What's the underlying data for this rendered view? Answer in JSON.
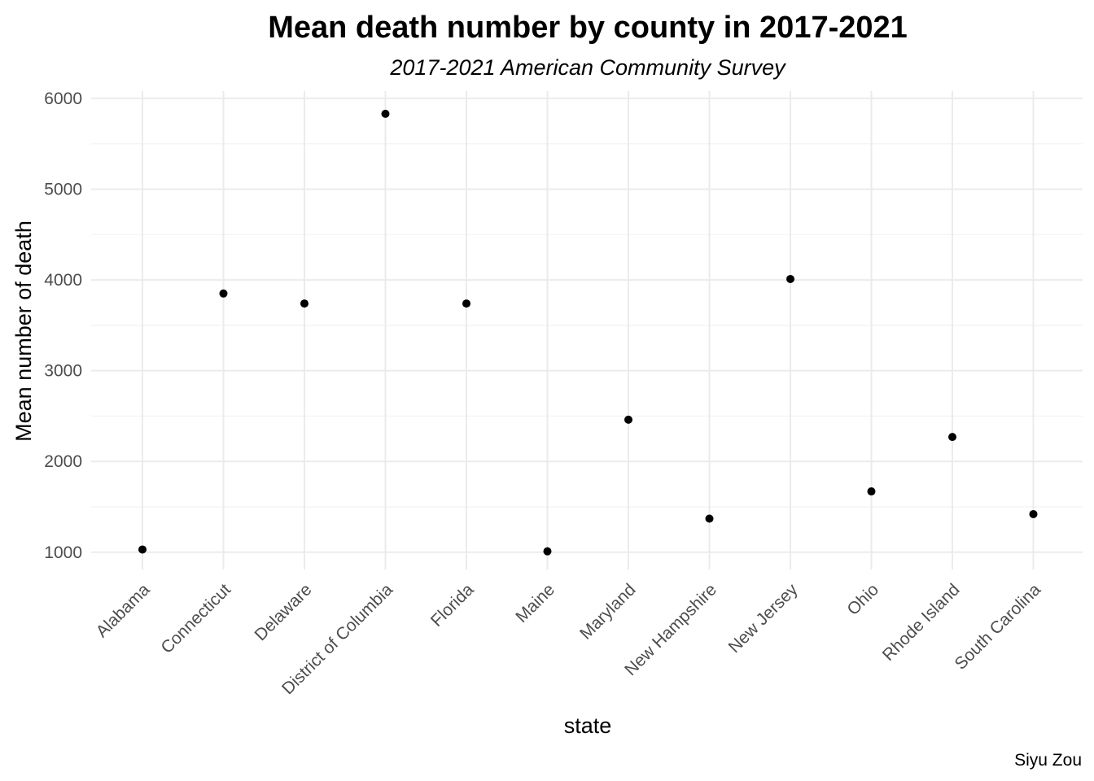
{
  "chart_data": {
    "type": "scatter",
    "title": "Mean death number by county in 2017-2021",
    "subtitle": "2017-2021 American Community Survey",
    "xlabel": "state",
    "ylabel": "Mean number of death",
    "caption": "Siyu Zou",
    "categories": [
      "Alabama",
      "Connecticut",
      "Delaware",
      "District of Columbia",
      "Florida",
      "Maine",
      "Maryland",
      "New Hampshire",
      "New Jersey",
      "Ohio",
      "Rhode Island",
      "South Carolina"
    ],
    "values": [
      1030,
      3850,
      3740,
      5830,
      3740,
      1010,
      2460,
      1370,
      4010,
      1670,
      2270,
      1420
    ],
    "ylim": [
      810,
      6080
    ],
    "yticks": [
      1000,
      2000,
      3000,
      4000,
      5000,
      6000
    ],
    "grid": true,
    "legend": "none",
    "point_color": "#000000"
  }
}
